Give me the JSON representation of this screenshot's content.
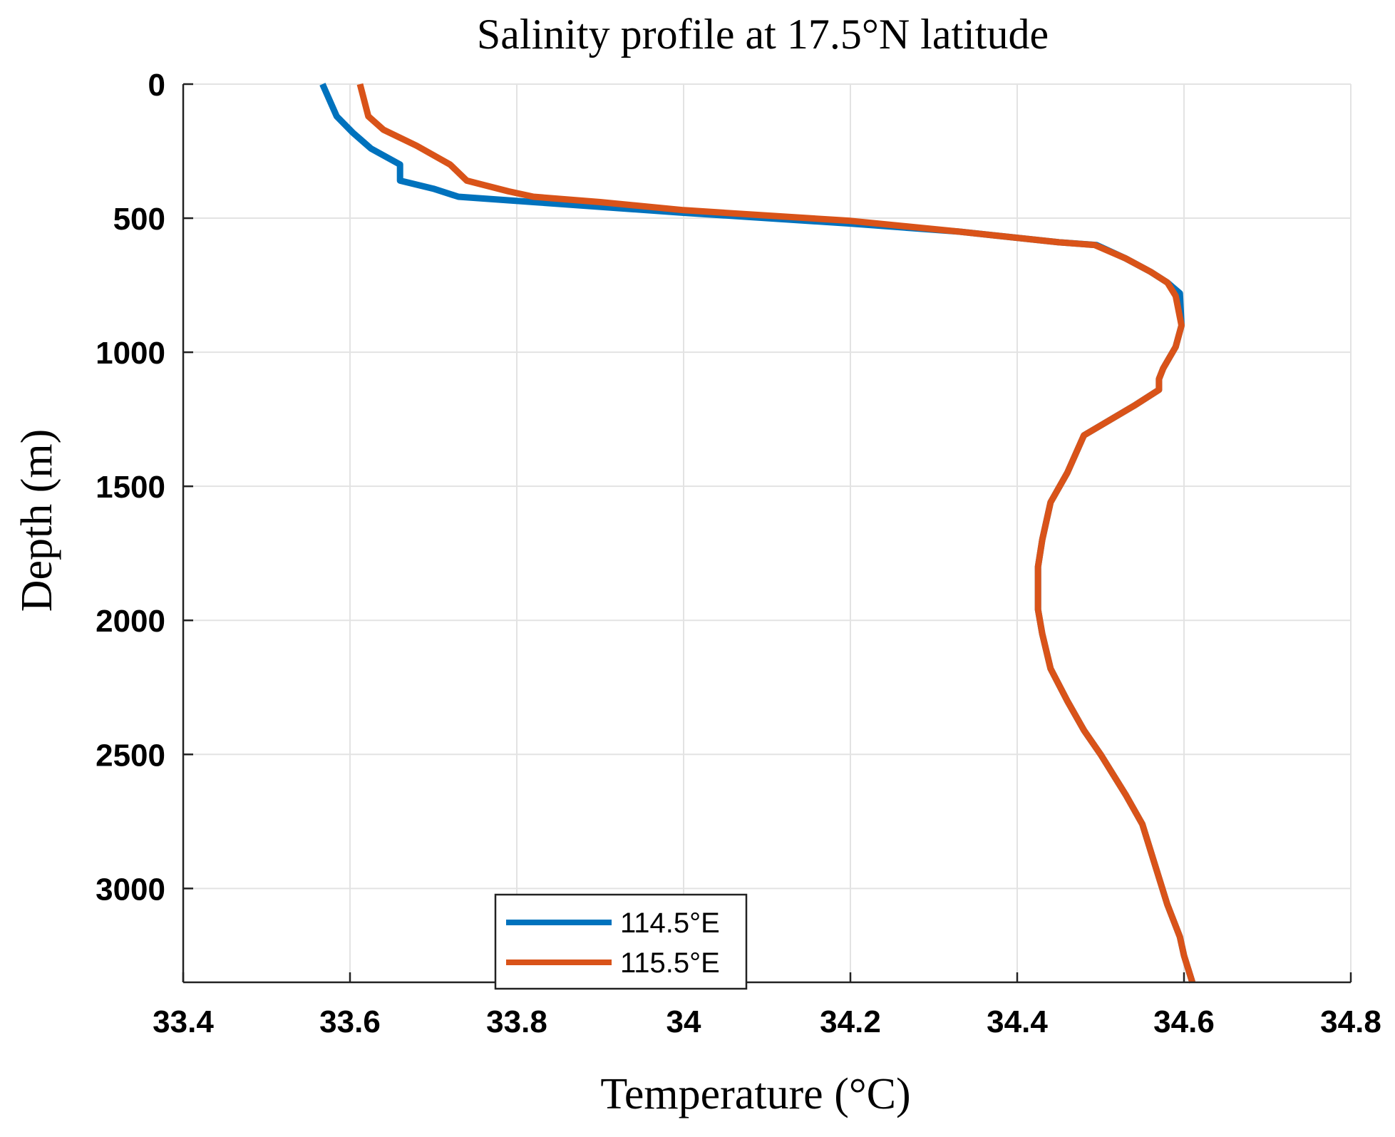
{
  "chart_data": {
    "type": "line",
    "title": "Salinity profile at 17.5°N latitude",
    "xlabel": "Temperature (°C)",
    "ylabel": "Depth (m)",
    "xlim": [
      33.4,
      34.8
    ],
    "ylim": [
      0,
      3350
    ],
    "y_reversed": true,
    "grid": true,
    "xticks": [
      33.4,
      33.6,
      33.8,
      34,
      34.2,
      34.4,
      34.6,
      34.8
    ],
    "xtick_labels": [
      "33.4",
      "33.6",
      "33.8",
      "34",
      "34.2",
      "34.4",
      "34.6",
      "34.8"
    ],
    "yticks": [
      0,
      500,
      1000,
      1500,
      2000,
      2500,
      3000
    ],
    "ytick_labels": [
      "0",
      "500",
      "1000",
      "1500",
      "2000",
      "2500",
      "3000"
    ],
    "legend_position": "bottom-center",
    "series": [
      {
        "name": "114.5°E",
        "color": "#0072BD",
        "points": [
          [
            33.567,
            0
          ],
          [
            33.584,
            120
          ],
          [
            33.603,
            180
          ],
          [
            33.625,
            240
          ],
          [
            33.66,
            300
          ],
          [
            33.66,
            360
          ],
          [
            33.7,
            390
          ],
          [
            33.73,
            420
          ],
          [
            33.82,
            440
          ],
          [
            34.0,
            480
          ],
          [
            34.2,
            520
          ],
          [
            34.33,
            550
          ],
          [
            34.45,
            590
          ],
          [
            34.495,
            600
          ],
          [
            34.53,
            650
          ],
          [
            34.56,
            700
          ],
          [
            34.58,
            740
          ],
          [
            34.595,
            780
          ],
          [
            34.597,
            900
          ],
          [
            34.59,
            980
          ],
          [
            34.575,
            1060
          ],
          [
            34.57,
            1100
          ],
          [
            34.57,
            1140
          ],
          [
            34.54,
            1200
          ],
          [
            34.48,
            1310
          ],
          [
            34.46,
            1450
          ],
          [
            34.44,
            1560
          ],
          [
            34.43,
            1700
          ],
          [
            34.425,
            1800
          ],
          [
            34.425,
            1960
          ],
          [
            34.43,
            2050
          ],
          [
            34.44,
            2180
          ],
          [
            34.46,
            2300
          ],
          [
            34.48,
            2410
          ],
          [
            34.5,
            2500
          ],
          [
            34.53,
            2650
          ],
          [
            34.55,
            2760
          ],
          [
            34.57,
            2960
          ],
          [
            34.58,
            3060
          ],
          [
            34.595,
            3180
          ],
          [
            34.6,
            3250
          ],
          [
            34.61,
            3350
          ]
        ]
      },
      {
        "name": "115.5°E",
        "color": "#D95319",
        "points": [
          [
            33.612,
            0
          ],
          [
            33.622,
            120
          ],
          [
            33.64,
            170
          ],
          [
            33.68,
            230
          ],
          [
            33.72,
            300
          ],
          [
            33.74,
            360
          ],
          [
            33.79,
            400
          ],
          [
            33.82,
            420
          ],
          [
            33.9,
            440
          ],
          [
            34.0,
            470
          ],
          [
            34.2,
            510
          ],
          [
            34.33,
            550
          ],
          [
            34.45,
            590
          ],
          [
            34.493,
            600
          ],
          [
            34.53,
            650
          ],
          [
            34.56,
            700
          ],
          [
            34.58,
            740
          ],
          [
            34.59,
            790
          ],
          [
            34.597,
            900
          ],
          [
            34.59,
            980
          ],
          [
            34.575,
            1060
          ],
          [
            34.57,
            1100
          ],
          [
            34.57,
            1140
          ],
          [
            34.54,
            1200
          ],
          [
            34.48,
            1310
          ],
          [
            34.46,
            1450
          ],
          [
            34.44,
            1560
          ],
          [
            34.43,
            1700
          ],
          [
            34.425,
            1800
          ],
          [
            34.425,
            1960
          ],
          [
            34.43,
            2050
          ],
          [
            34.44,
            2180
          ],
          [
            34.46,
            2300
          ],
          [
            34.48,
            2410
          ],
          [
            34.5,
            2500
          ],
          [
            34.53,
            2650
          ],
          [
            34.55,
            2760
          ],
          [
            34.57,
            2960
          ],
          [
            34.58,
            3060
          ],
          [
            34.595,
            3180
          ],
          [
            34.6,
            3250
          ],
          [
            34.61,
            3350
          ]
        ]
      }
    ]
  }
}
